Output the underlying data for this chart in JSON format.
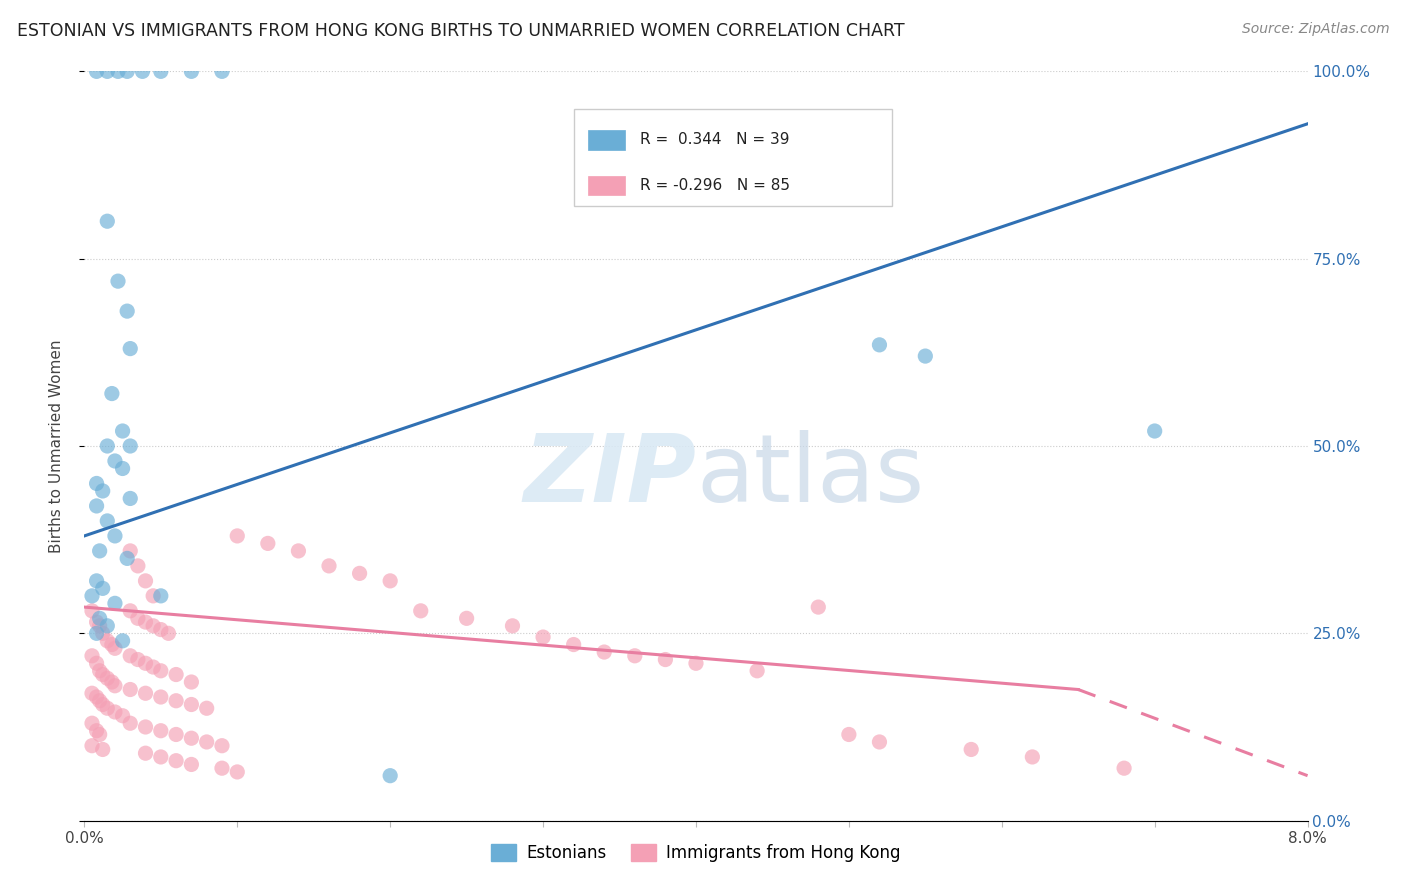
{
  "title": "ESTONIAN VS IMMIGRANTS FROM HONG KONG BIRTHS TO UNMARRIED WOMEN CORRELATION CHART",
  "source": "Source: ZipAtlas.com",
  "ylabel": "Births to Unmarried Women",
  "yticks": [
    "0.0%",
    "25.0%",
    "50.0%",
    "75.0%",
    "100.0%"
  ],
  "ytick_vals": [
    0.0,
    0.25,
    0.5,
    0.75,
    1.0
  ],
  "legend_blue_r": "R =  0.344",
  "legend_blue_n": "N = 39",
  "legend_pink_r": "R = -0.296",
  "legend_pink_n": "N = 85",
  "blue_color": "#6aaed6",
  "pink_color": "#f4a0b5",
  "blue_line_color": "#3070b3",
  "pink_line_color": "#e87ea1",
  "background_color": "#ffffff",
  "watermark_zip": "ZIP",
  "watermark_atlas": "atlas",
  "xmin": 0.0,
  "xmax": 0.08,
  "ymin": 0.0,
  "ymax": 1.0,
  "blue_line_y0": 0.38,
  "blue_line_y1": 0.93,
  "pink_line_y0": 0.285,
  "pink_line_y1_solid": 0.175,
  "pink_line_x1_solid": 0.065,
  "pink_line_y1_dash": 0.06,
  "blue_scatter": [
    [
      0.0008,
      1.0
    ],
    [
      0.0015,
      1.0
    ],
    [
      0.0022,
      1.0
    ],
    [
      0.0028,
      1.0
    ],
    [
      0.0038,
      1.0
    ],
    [
      0.005,
      1.0
    ],
    [
      0.007,
      1.0
    ],
    [
      0.009,
      1.0
    ],
    [
      0.0015,
      0.8
    ],
    [
      0.0022,
      0.72
    ],
    [
      0.0028,
      0.68
    ],
    [
      0.003,
      0.63
    ],
    [
      0.0018,
      0.57
    ],
    [
      0.0025,
      0.52
    ],
    [
      0.0015,
      0.5
    ],
    [
      0.003,
      0.5
    ],
    [
      0.002,
      0.48
    ],
    [
      0.0025,
      0.47
    ],
    [
      0.0008,
      0.45
    ],
    [
      0.0012,
      0.44
    ],
    [
      0.003,
      0.43
    ],
    [
      0.0008,
      0.42
    ],
    [
      0.0015,
      0.4
    ],
    [
      0.002,
      0.38
    ],
    [
      0.001,
      0.36
    ],
    [
      0.0028,
      0.35
    ],
    [
      0.0008,
      0.32
    ],
    [
      0.0012,
      0.31
    ],
    [
      0.0005,
      0.3
    ],
    [
      0.002,
      0.29
    ],
    [
      0.001,
      0.27
    ],
    [
      0.0015,
      0.26
    ],
    [
      0.0008,
      0.25
    ],
    [
      0.0025,
      0.24
    ],
    [
      0.052,
      0.635
    ],
    [
      0.02,
      0.06
    ],
    [
      0.055,
      0.62
    ],
    [
      0.07,
      0.52
    ],
    [
      0.005,
      0.3
    ]
  ],
  "pink_scatter": [
    [
      0.0005,
      0.28
    ],
    [
      0.0008,
      0.265
    ],
    [
      0.001,
      0.26
    ],
    [
      0.0012,
      0.25
    ],
    [
      0.0015,
      0.24
    ],
    [
      0.0018,
      0.235
    ],
    [
      0.002,
      0.23
    ],
    [
      0.0005,
      0.22
    ],
    [
      0.0008,
      0.21
    ],
    [
      0.001,
      0.2
    ],
    [
      0.0012,
      0.195
    ],
    [
      0.0015,
      0.19
    ],
    [
      0.0018,
      0.185
    ],
    [
      0.002,
      0.18
    ],
    [
      0.0005,
      0.17
    ],
    [
      0.0008,
      0.165
    ],
    [
      0.001,
      0.16
    ],
    [
      0.0012,
      0.155
    ],
    [
      0.0015,
      0.15
    ],
    [
      0.002,
      0.145
    ],
    [
      0.0025,
      0.14
    ],
    [
      0.0005,
      0.13
    ],
    [
      0.0008,
      0.12
    ],
    [
      0.001,
      0.115
    ],
    [
      0.003,
      0.36
    ],
    [
      0.0035,
      0.34
    ],
    [
      0.004,
      0.32
    ],
    [
      0.0045,
      0.3
    ],
    [
      0.003,
      0.28
    ],
    [
      0.0035,
      0.27
    ],
    [
      0.004,
      0.265
    ],
    [
      0.0045,
      0.26
    ],
    [
      0.005,
      0.255
    ],
    [
      0.0055,
      0.25
    ],
    [
      0.003,
      0.22
    ],
    [
      0.0035,
      0.215
    ],
    [
      0.004,
      0.21
    ],
    [
      0.0045,
      0.205
    ],
    [
      0.005,
      0.2
    ],
    [
      0.006,
      0.195
    ],
    [
      0.007,
      0.185
    ],
    [
      0.003,
      0.175
    ],
    [
      0.004,
      0.17
    ],
    [
      0.005,
      0.165
    ],
    [
      0.006,
      0.16
    ],
    [
      0.007,
      0.155
    ],
    [
      0.008,
      0.15
    ],
    [
      0.003,
      0.13
    ],
    [
      0.004,
      0.125
    ],
    [
      0.005,
      0.12
    ],
    [
      0.006,
      0.115
    ],
    [
      0.007,
      0.11
    ],
    [
      0.008,
      0.105
    ],
    [
      0.009,
      0.1
    ],
    [
      0.004,
      0.09
    ],
    [
      0.005,
      0.085
    ],
    [
      0.006,
      0.08
    ],
    [
      0.007,
      0.075
    ],
    [
      0.009,
      0.07
    ],
    [
      0.01,
      0.065
    ],
    [
      0.01,
      0.38
    ],
    [
      0.012,
      0.37
    ],
    [
      0.014,
      0.36
    ],
    [
      0.016,
      0.34
    ],
    [
      0.018,
      0.33
    ],
    [
      0.02,
      0.32
    ],
    [
      0.022,
      0.28
    ],
    [
      0.025,
      0.27
    ],
    [
      0.028,
      0.26
    ],
    [
      0.03,
      0.245
    ],
    [
      0.032,
      0.235
    ],
    [
      0.034,
      0.225
    ],
    [
      0.036,
      0.22
    ],
    [
      0.038,
      0.215
    ],
    [
      0.04,
      0.21
    ],
    [
      0.044,
      0.2
    ],
    [
      0.048,
      0.285
    ],
    [
      0.05,
      0.115
    ],
    [
      0.052,
      0.105
    ],
    [
      0.058,
      0.095
    ],
    [
      0.062,
      0.085
    ],
    [
      0.068,
      0.07
    ],
    [
      0.0005,
      0.1
    ],
    [
      0.0012,
      0.095
    ]
  ]
}
